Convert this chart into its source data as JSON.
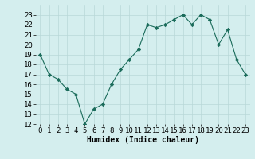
{
  "x": [
    0,
    1,
    2,
    3,
    4,
    5,
    6,
    7,
    8,
    9,
    10,
    11,
    12,
    13,
    14,
    15,
    16,
    17,
    18,
    19,
    20,
    21,
    22,
    23
  ],
  "y": [
    19,
    17,
    16.5,
    15.5,
    15,
    12,
    13.5,
    14,
    16,
    17.5,
    18.5,
    19.5,
    22,
    21.7,
    22,
    22.5,
    23,
    22,
    23,
    22.5,
    20,
    21.5,
    18.5,
    17
  ],
  "line_color": "#1a6b5a",
  "marker_color": "#1a6b5a",
  "bg_color": "#d4eeee",
  "grid_color": "#b8d8d8",
  "xlabel": "Humidex (Indice chaleur)",
  "ylim": [
    12,
    24
  ],
  "xlim": [
    -0.5,
    23.5
  ],
  "yticks": [
    12,
    13,
    14,
    15,
    16,
    17,
    18,
    19,
    20,
    21,
    22,
    23
  ],
  "xticks": [
    0,
    1,
    2,
    3,
    4,
    5,
    6,
    7,
    8,
    9,
    10,
    11,
    12,
    13,
    14,
    15,
    16,
    17,
    18,
    19,
    20,
    21,
    22,
    23
  ],
  "xtick_labels": [
    "0",
    "1",
    "2",
    "3",
    "4",
    "5",
    "6",
    "7",
    "8",
    "9",
    "10",
    "11",
    "12",
    "13",
    "14",
    "15",
    "16",
    "17",
    "18",
    "19",
    "20",
    "21",
    "22",
    "23"
  ],
  "ytick_labels": [
    "12",
    "13",
    "14",
    "15",
    "16",
    "17",
    "18",
    "19",
    "20",
    "21",
    "22",
    "23"
  ],
  "label_fontsize": 7,
  "tick_fontsize": 6.5
}
